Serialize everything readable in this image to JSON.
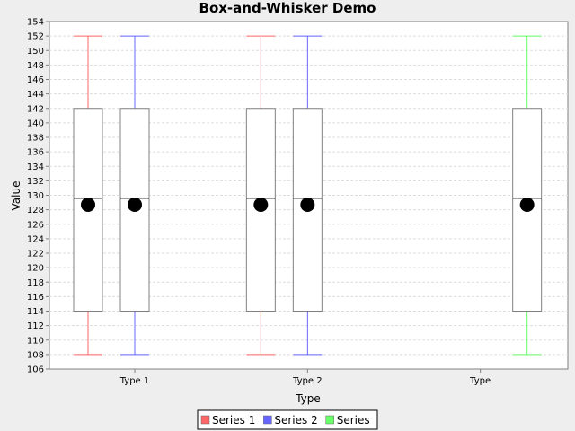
{
  "chart_data": {
    "type": "box",
    "title": "Box-and-Whisker Demo",
    "xlabel": "Type",
    "ylabel": "Value",
    "ylim": [
      106,
      154
    ],
    "ytick_step": 2,
    "grid": true,
    "legend_position": "bottom-center",
    "categories": [
      "Type 1",
      "Type 2",
      "Type"
    ],
    "series": [
      {
        "name": "Series 1",
        "color": "#ff6666",
        "boxes": [
          {
            "category": "Type 1",
            "min": 108,
            "q1": 114,
            "median": 129.6,
            "mean": 128.7,
            "q3": 142,
            "max": 152
          },
          {
            "category": "Type 2",
            "min": 108,
            "q1": 114,
            "median": 129.6,
            "mean": 128.7,
            "q3": 142,
            "max": 152
          }
        ]
      },
      {
        "name": "Series 2",
        "color": "#6666ff",
        "boxes": [
          {
            "category": "Type 1",
            "min": 108,
            "q1": 114,
            "median": 129.6,
            "mean": 128.7,
            "q3": 142,
            "max": 152
          },
          {
            "category": "Type 2",
            "min": 108,
            "q1": 114,
            "median": 129.6,
            "mean": 128.7,
            "q3": 142,
            "max": 152
          }
        ]
      },
      {
        "name": "Series",
        "color": "#66ff66",
        "boxes": [
          {
            "category": "Type",
            "min": 108,
            "q1": 114,
            "median": 129.6,
            "mean": 128.7,
            "q3": 142,
            "max": 152
          }
        ]
      }
    ]
  }
}
